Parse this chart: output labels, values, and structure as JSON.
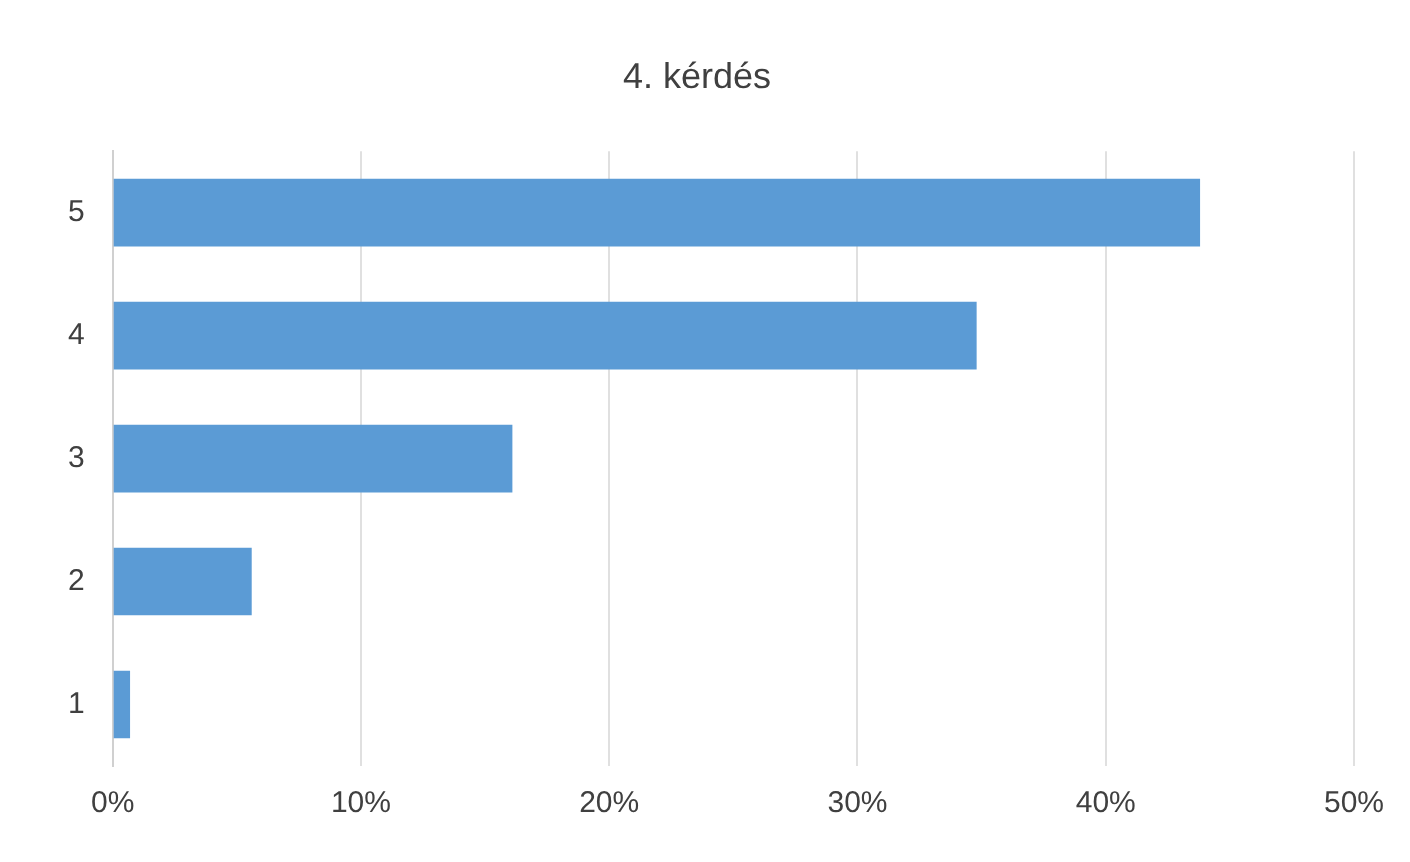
{
  "chart_data": {
    "type": "bar",
    "orientation": "horizontal",
    "title": "4. kérdés",
    "categories": [
      "5",
      "4",
      "3",
      "2",
      "1"
    ],
    "values": [
      43.8,
      34.8,
      16.1,
      5.6,
      0.7
    ],
    "color": "#5b9bd5",
    "xlim": [
      0,
      50
    ],
    "xticks": [
      {
        "value": 0,
        "label": "0%"
      },
      {
        "value": 10,
        "label": "10%"
      },
      {
        "value": 20,
        "label": "20%"
      },
      {
        "value": 30,
        "label": "30%"
      },
      {
        "value": 40,
        "label": "40%"
      },
      {
        "value": 50,
        "label": "50%"
      }
    ],
    "grid": "x",
    "legend": false
  }
}
